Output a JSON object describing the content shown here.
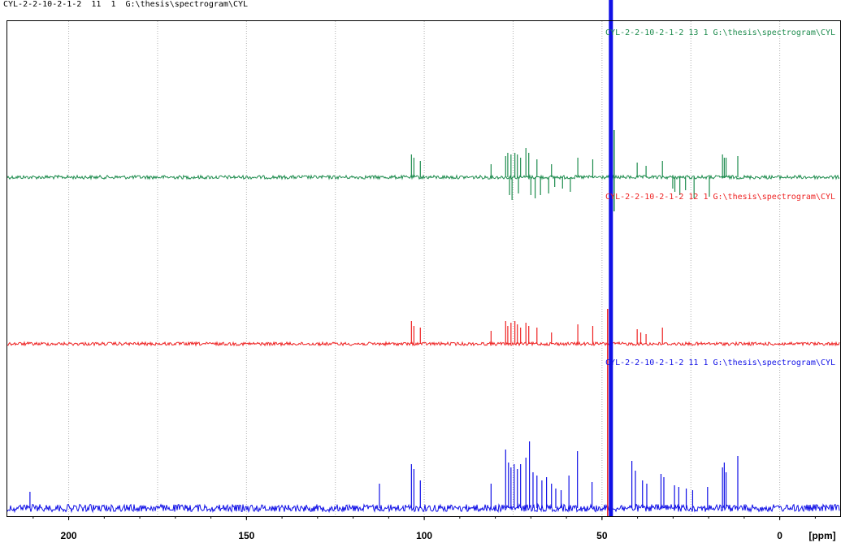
{
  "header": {
    "title": "CYL-2-2-10-2-1-2  11  1  G:\\thesis\\spectrogram\\CYL"
  },
  "colors": {
    "green": "#1e8c4e",
    "red": "#ee2222",
    "blue": "#1010e6",
    "grid": "#b0b0b0",
    "frame": "#000000"
  },
  "chart_data": {
    "type": "line",
    "xlabel": "[ppm]",
    "xlim": [
      217.5,
      -17
    ],
    "x_reversed": true,
    "grid": "vertical dotted",
    "xticks": [
      200,
      150,
      100,
      50,
      0
    ],
    "xtick_labels": [
      "200",
      "150",
      "100",
      "50",
      "0"
    ],
    "series": [
      {
        "name": "CYL-2-2-10-2-1-2  13  1  G:\\thesis\\spectrogram\\CYL",
        "color": "#1e8c4e",
        "peaks_up": [
          [
            103.6,
            28
          ],
          [
            102.9,
            24
          ],
          [
            101.1,
            20
          ],
          [
            81.2,
            16
          ],
          [
            77.1,
            26
          ],
          [
            76.5,
            30
          ],
          [
            75.6,
            28
          ],
          [
            74.5,
            30
          ],
          [
            73.8,
            28
          ],
          [
            72.9,
            24
          ],
          [
            71.4,
            36
          ],
          [
            70.6,
            30
          ],
          [
            68.3,
            22
          ],
          [
            64.2,
            16
          ],
          [
            56.8,
            24
          ],
          [
            52.6,
            22
          ],
          [
            47.4,
            36
          ],
          [
            40.1,
            18
          ],
          [
            37.6,
            14
          ],
          [
            33.0,
            20
          ],
          [
            16.1,
            28
          ],
          [
            15.6,
            24
          ],
          [
            15.1,
            24
          ],
          [
            11.8,
            26
          ]
        ],
        "peaks_down": [
          [
            76.0,
            22
          ],
          [
            75.3,
            28
          ],
          [
            73.5,
            20
          ],
          [
            70.0,
            22
          ],
          [
            68.8,
            26
          ],
          [
            67.3,
            22
          ],
          [
            65.0,
            20
          ],
          [
            63.3,
            12
          ],
          [
            61.1,
            14
          ],
          [
            58.9,
            18
          ],
          [
            30.1,
            14
          ],
          [
            29.5,
            18
          ],
          [
            28.1,
            22
          ],
          [
            26.5,
            16
          ],
          [
            24.1,
            26
          ],
          [
            19.8,
            24
          ]
        ]
      },
      {
        "name": "CYL-2-2-10-2-1-2  12  1  G:\\thesis\\spectrogram\\CYL",
        "color": "#ee2222",
        "peaks_up": [
          [
            103.6,
            28
          ],
          [
            102.9,
            22
          ],
          [
            101.1,
            20
          ],
          [
            81.2,
            16
          ],
          [
            77.1,
            28
          ],
          [
            76.5,
            22
          ],
          [
            75.6,
            26
          ],
          [
            74.5,
            28
          ],
          [
            73.8,
            24
          ],
          [
            72.9,
            20
          ],
          [
            71.4,
            26
          ],
          [
            70.6,
            22
          ],
          [
            68.3,
            20
          ],
          [
            64.2,
            14
          ],
          [
            56.8,
            24
          ],
          [
            52.6,
            22
          ],
          [
            47.4,
            24
          ],
          [
            40.1,
            18
          ],
          [
            39.1,
            14
          ],
          [
            37.6,
            12
          ],
          [
            33.0,
            20
          ]
        ]
      },
      {
        "name": "CYL-2-2-10-2-1-2  11  1  G:\\thesis\\spectrogram\\CYL",
        "color": "#1010e6",
        "peaks_up": [
          [
            210.9,
            20
          ],
          [
            112.6,
            30
          ],
          [
            103.6,
            54
          ],
          [
            102.9,
            48
          ],
          [
            101.1,
            34
          ],
          [
            81.2,
            30
          ],
          [
            77.1,
            72
          ],
          [
            76.3,
            56
          ],
          [
            75.6,
            50
          ],
          [
            74.7,
            54
          ],
          [
            73.8,
            48
          ],
          [
            72.9,
            54
          ],
          [
            71.4,
            62
          ],
          [
            70.4,
            82
          ],
          [
            69.4,
            44
          ],
          [
            68.3,
            40
          ],
          [
            66.9,
            34
          ],
          [
            65.6,
            38
          ],
          [
            64.2,
            30
          ],
          [
            63.0,
            24
          ],
          [
            61.5,
            22
          ],
          [
            59.3,
            40
          ],
          [
            56.9,
            70
          ],
          [
            52.8,
            32
          ],
          [
            41.6,
            58
          ],
          [
            40.6,
            46
          ],
          [
            38.6,
            34
          ],
          [
            37.4,
            30
          ],
          [
            33.4,
            42
          ],
          [
            32.6,
            38
          ],
          [
            29.6,
            28
          ],
          [
            28.4,
            26
          ],
          [
            26.3,
            24
          ],
          [
            24.5,
            22
          ],
          [
            20.3,
            26
          ],
          [
            16.1,
            50
          ],
          [
            15.6,
            56
          ],
          [
            15.1,
            44
          ],
          [
            11.8,
            64
          ]
        ]
      }
    ],
    "solvent_peak": {
      "x": 47.5,
      "note": "saturated vertical band through all traces"
    }
  }
}
